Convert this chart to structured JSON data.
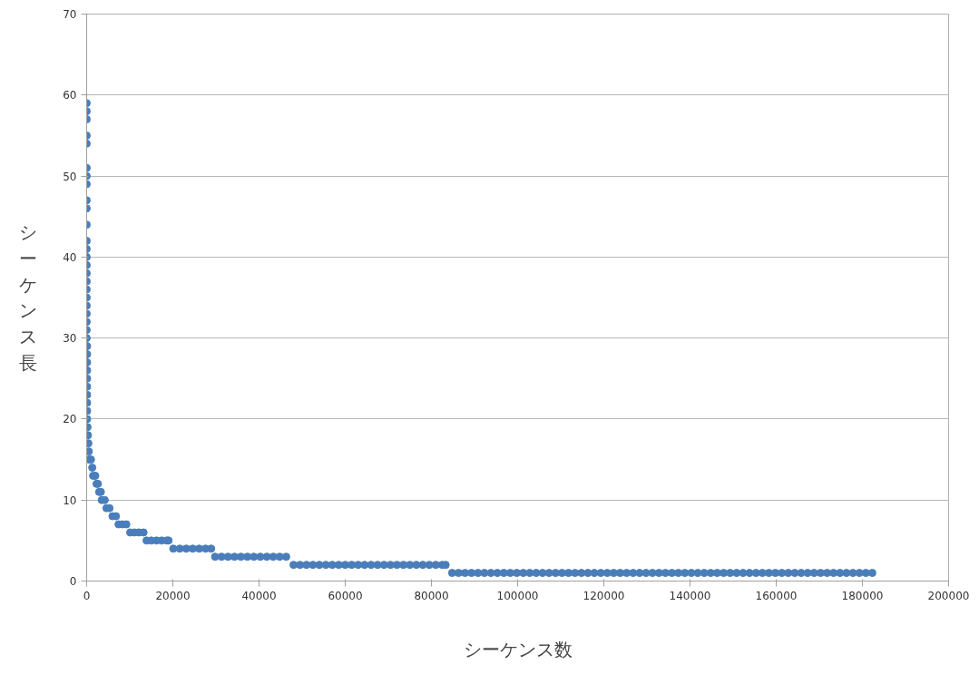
{
  "chart_data": {
    "type": "scatter",
    "xlabel": "シーケンス数",
    "ylabel": "シーケンス長",
    "xlim": [
      0,
      200000
    ],
    "xticks": [
      0,
      20000,
      40000,
      60000,
      80000,
      100000,
      120000,
      140000,
      160000,
      180000,
      200000
    ],
    "ylim": [
      0,
      70
    ],
    "yticks": [
      0,
      10,
      20,
      30,
      40,
      50,
      60,
      70
    ],
    "grid": "y",
    "marker": "circle",
    "series": [
      {
        "color": "#4a7ebb",
        "x": [
          0,
          0,
          0,
          0,
          0,
          0,
          0,
          0,
          0,
          0,
          0,
          0,
          0,
          0,
          0,
          0,
          0,
          0,
          0,
          0,
          0,
          0,
          0,
          0,
          100,
          100,
          100,
          100,
          100,
          100,
          100,
          100,
          100,
          100,
          200,
          300,
          400,
          500,
          600,
          1000,
          1300,
          1500,
          2000,
          2300,
          2600,
          2900,
          3300,
          3500,
          4200,
          4600,
          5300,
          6000,
          6800,
          7400,
          8300,
          9200,
          10100,
          11100,
          12100,
          13200,
          13900,
          15000,
          16200,
          17400,
          18600,
          19000,
          20100,
          21600,
          23100,
          24600,
          26100,
          27600,
          28900,
          29800,
          31300,
          32800,
          34300,
          35800,
          37300,
          38800,
          40300,
          41800,
          43300,
          44800,
          46300,
          48000,
          49500,
          51000,
          52500,
          54000,
          55500,
          57000,
          58500,
          60000,
          61500,
          63000,
          64500,
          66000,
          67500,
          69000,
          70500,
          72000,
          73500,
          75000,
          76500,
          78000,
          79500,
          81000,
          82500,
          83300,
          84800,
          86300,
          87800,
          89300,
          90800,
          92300,
          93800,
          95300,
          96800,
          98300,
          99800,
          101300,
          102800,
          104300,
          105800,
          107300,
          108800,
          110300,
          111800,
          113300,
          114800,
          116300,
          117800,
          119300,
          120800,
          122300,
          123800,
          125300,
          126800,
          128300,
          129800,
          131300,
          132800,
          134300,
          135800,
          137300,
          138800,
          140300,
          141800,
          143300,
          144800,
          146300,
          147800,
          149300,
          150800,
          152300,
          153800,
          155300,
          156800,
          158300,
          159800,
          161300,
          162800,
          164300,
          165800,
          167300,
          168800,
          170300,
          171800,
          173300,
          174800,
          176300,
          177800,
          179300,
          180800,
          182300
        ],
        "values": [
          59,
          58,
          57,
          55,
          54,
          51,
          50,
          49,
          47,
          46,
          44,
          42,
          41,
          40,
          39,
          38,
          37,
          36,
          35,
          34,
          33,
          32,
          31,
          30,
          29,
          28,
          27,
          26,
          25,
          24,
          23,
          22,
          21,
          20,
          19,
          18,
          17,
          16,
          15,
          15,
          14,
          13,
          13,
          12,
          12,
          11,
          11,
          10,
          10,
          9,
          9,
          8,
          8,
          7,
          7,
          7,
          6,
          6,
          6,
          6,
          5,
          5,
          5,
          5,
          5,
          5,
          4,
          4,
          4,
          4,
          4,
          4,
          4,
          3,
          3,
          3,
          3,
          3,
          3,
          3,
          3,
          3,
          3,
          3,
          3,
          2,
          2,
          2,
          2,
          2,
          2,
          2,
          2,
          2,
          2,
          2,
          2,
          2,
          2,
          2,
          2,
          2,
          2,
          2,
          2,
          2,
          2,
          2,
          2,
          2,
          1,
          1,
          1,
          1,
          1,
          1,
          1,
          1,
          1,
          1,
          1,
          1,
          1,
          1,
          1,
          1,
          1,
          1,
          1,
          1,
          1,
          1,
          1,
          1,
          1,
          1,
          1,
          1,
          1,
          1,
          1,
          1,
          1,
          1,
          1,
          1,
          1,
          1,
          1,
          1,
          1,
          1,
          1,
          1,
          1,
          1,
          1,
          1,
          1,
          1,
          1,
          1,
          1,
          1,
          1,
          1,
          1,
          1,
          1,
          1,
          1,
          1,
          1,
          1,
          1,
          1
        ]
      }
    ]
  }
}
